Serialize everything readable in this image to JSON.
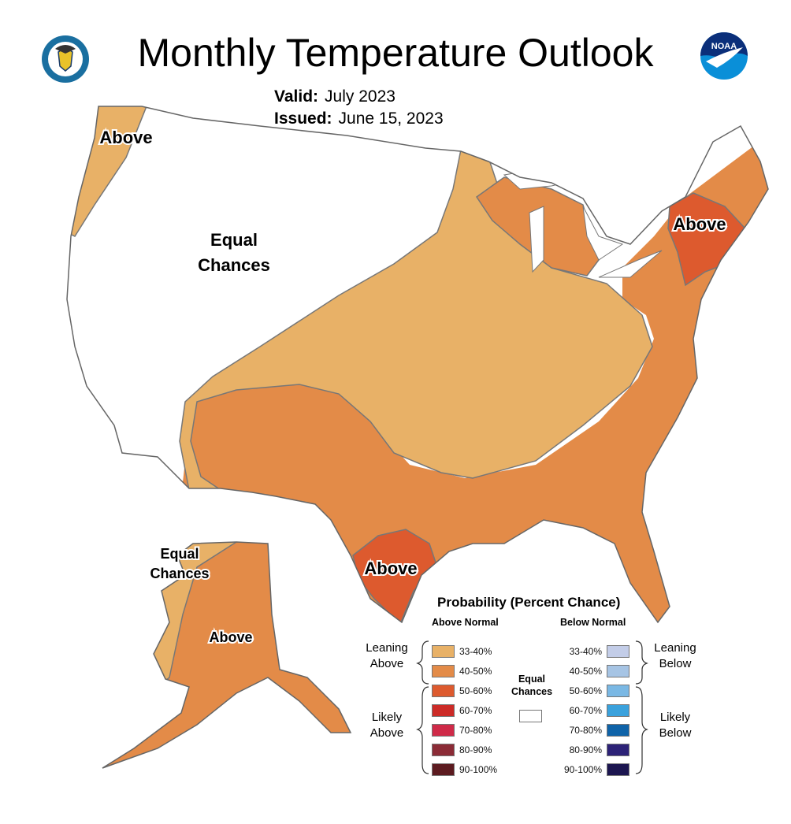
{
  "header": {
    "title": "Monthly Temperature Outlook",
    "valid_label": "Valid:",
    "valid_value": "July 2023",
    "issued_label": "Issued:",
    "issued_value": "June 15, 2023",
    "left_logo": "department-of-commerce-seal",
    "right_logo": "noaa-logo",
    "right_logo_text": "NOAA"
  },
  "map": {
    "labels": {
      "northwest": "Above",
      "west_line1": "Equal",
      "west_line2": "Chances",
      "northeast": "Above",
      "texas": "Above",
      "alaska_ec_line1": "Equal",
      "alaska_ec_line2": "Chances",
      "alaska_above": "Above"
    },
    "colors": {
      "land": "#ffffff",
      "border": "#777777",
      "above_33_40": "#e8b167",
      "above_40_50": "#e38b48",
      "above_50_60": "#dd5a2e"
    }
  },
  "legend": {
    "title": "Probability (Percent Chance)",
    "above_header": "Above Normal",
    "below_header": "Below Normal",
    "leaning_above": [
      "Leaning",
      "Above"
    ],
    "likely_above": [
      "Likely",
      "Above"
    ],
    "leaning_below": [
      "Leaning",
      "Below"
    ],
    "likely_below": [
      "Likely",
      "Below"
    ],
    "equal_chances": [
      "Equal",
      "Chances"
    ],
    "above": [
      {
        "label": "33-40%",
        "color": "#e8b167"
      },
      {
        "label": "40-50%",
        "color": "#e38b48"
      },
      {
        "label": "50-60%",
        "color": "#dd5a2e"
      },
      {
        "label": "60-70%",
        "color": "#cc2b27"
      },
      {
        "label": "70-80%",
        "color": "#cf2a48"
      },
      {
        "label": "80-90%",
        "color": "#8b2b36"
      },
      {
        "label": "90-100%",
        "color": "#5c1b20"
      }
    ],
    "below": [
      {
        "label": "33-40%",
        "color": "#c3cde8"
      },
      {
        "label": "40-50%",
        "color": "#a6c4e4"
      },
      {
        "label": "50-60%",
        "color": "#7ab8e4"
      },
      {
        "label": "60-70%",
        "color": "#3aa1dc"
      },
      {
        "label": "70-80%",
        "color": "#0f63a8"
      },
      {
        "label": "80-90%",
        "color": "#2c2277"
      },
      {
        "label": "90-100%",
        "color": "#1c1650"
      }
    ]
  }
}
